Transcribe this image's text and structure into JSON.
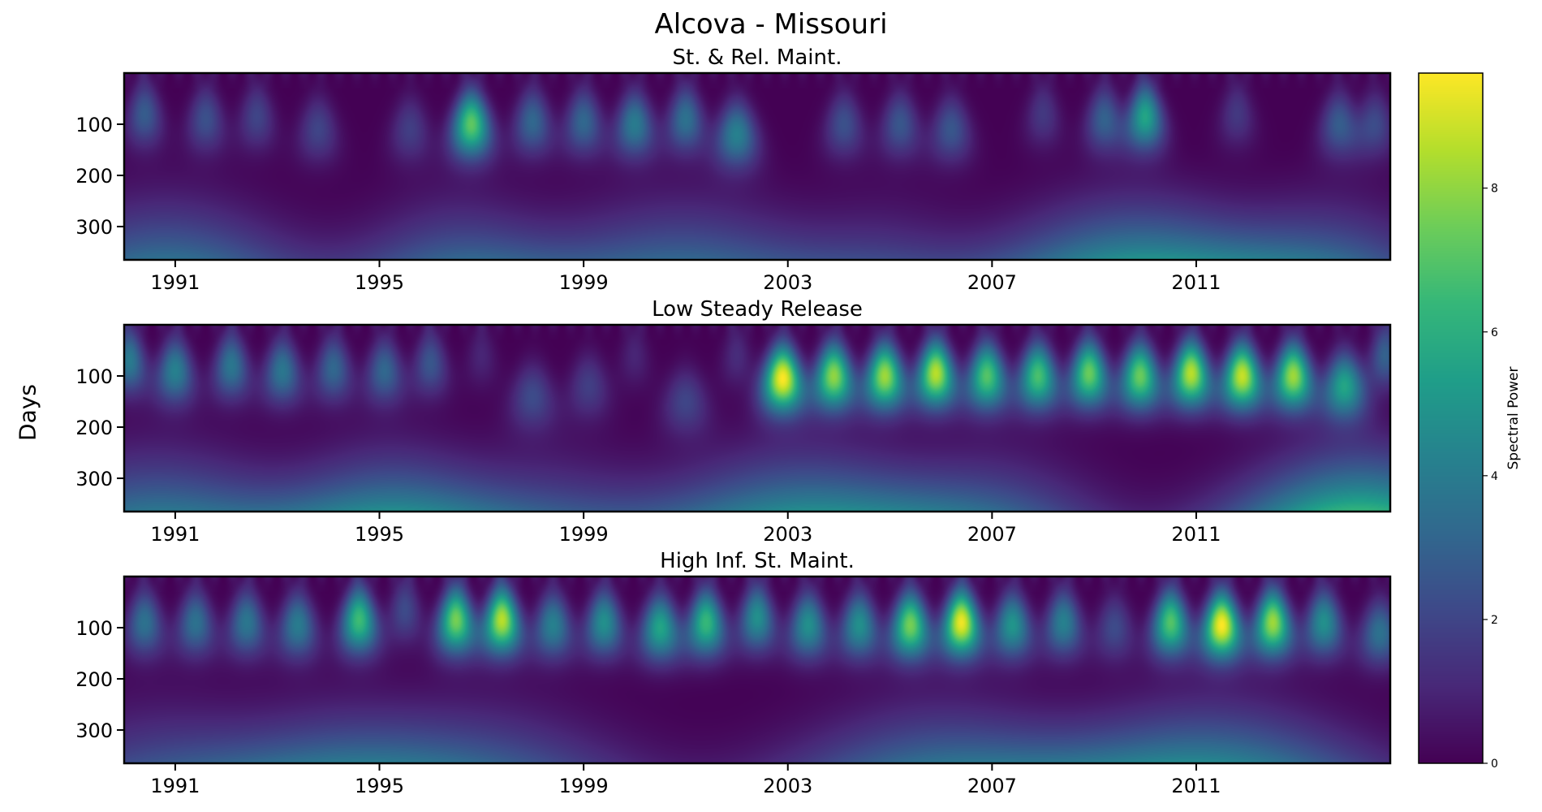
{
  "chart_data": {
    "type": "heatmap",
    "title": "Alcova - Missouri",
    "ylabel": "Days",
    "colorbar": {
      "label": "Spectral Power",
      "range": [
        0,
        9.6
      ],
      "ticks": [
        0,
        2,
        4,
        6,
        8
      ],
      "colormap": "viridis"
    },
    "x_ticks": [
      "1991",
      "1995",
      "1999",
      "2003",
      "2007",
      "2011"
    ],
    "x_range": [
      1990,
      2014.8
    ],
    "y_ticks": [
      100,
      200,
      300
    ],
    "y_range": [
      0,
      365
    ],
    "panels": [
      {
        "title": "St. & Rel. Maint.",
        "blobs": [
          {
            "t": 1990.4,
            "p": 80,
            "a": 2.8
          },
          {
            "t": 1991.6,
            "p": 90,
            "a": 2.4
          },
          {
            "t": 1992.6,
            "p": 85,
            "a": 2.0
          },
          {
            "t": 1993.8,
            "p": 110,
            "a": 2.0
          },
          {
            "t": 1995.6,
            "p": 110,
            "a": 1.8
          },
          {
            "t": 1996.8,
            "p": 100,
            "a": 7.2
          },
          {
            "t": 1998.0,
            "p": 95,
            "a": 3.2
          },
          {
            "t": 1999.0,
            "p": 95,
            "a": 3.2
          },
          {
            "t": 2000.0,
            "p": 100,
            "a": 4.0
          },
          {
            "t": 2001.0,
            "p": 90,
            "a": 3.6
          },
          {
            "t": 2002.0,
            "p": 120,
            "a": 4.2
          },
          {
            "t": 2004.1,
            "p": 100,
            "a": 2.4
          },
          {
            "t": 2005.2,
            "p": 100,
            "a": 2.6
          },
          {
            "t": 2006.2,
            "p": 110,
            "a": 2.6
          },
          {
            "t": 2008.0,
            "p": 80,
            "a": 1.6
          },
          {
            "t": 2009.2,
            "p": 90,
            "a": 3.0
          },
          {
            "t": 2010.0,
            "p": 85,
            "a": 5.6
          },
          {
            "t": 2011.8,
            "p": 80,
            "a": 1.6
          },
          {
            "t": 2013.8,
            "p": 100,
            "a": 2.8
          },
          {
            "t": 2014.5,
            "p": 100,
            "a": 2.2
          }
        ],
        "bands": [
          {
            "t": 1990.8,
            "w": 1.4,
            "a": 3.6
          },
          {
            "t": 1996.5,
            "w": 1.1,
            "a": 2.8
          },
          {
            "t": 2000.9,
            "w": 1.6,
            "a": 3.2
          },
          {
            "t": 2004.9,
            "w": 1.0,
            "a": 1.4
          },
          {
            "t": 2009.8,
            "w": 1.5,
            "a": 4.8
          },
          {
            "t": 2013.6,
            "w": 1.2,
            "a": 2.8
          }
        ]
      },
      {
        "title": "Low Steady Release",
        "blobs": [
          {
            "t": 1990.1,
            "p": 70,
            "a": 4.0
          },
          {
            "t": 1991.0,
            "p": 90,
            "a": 4.2
          },
          {
            "t": 1992.1,
            "p": 80,
            "a": 3.8
          },
          {
            "t": 1993.1,
            "p": 90,
            "a": 3.8
          },
          {
            "t": 1994.1,
            "p": 85,
            "a": 3.2
          },
          {
            "t": 1995.1,
            "p": 90,
            "a": 3.2
          },
          {
            "t": 1996.0,
            "p": 75,
            "a": 2.6
          },
          {
            "t": 1997.0,
            "p": 60,
            "a": 1.0
          },
          {
            "t": 1998.0,
            "p": 140,
            "a": 2.2
          },
          {
            "t": 1999.1,
            "p": 120,
            "a": 1.8
          },
          {
            "t": 2000.0,
            "p": 60,
            "a": 1.0
          },
          {
            "t": 2001.0,
            "p": 150,
            "a": 2.0
          },
          {
            "t": 2002.0,
            "p": 60,
            "a": 1.2
          },
          {
            "t": 2002.9,
            "p": 105,
            "a": 9.6
          },
          {
            "t": 2003.9,
            "p": 100,
            "a": 8.0
          },
          {
            "t": 2004.9,
            "p": 100,
            "a": 8.2
          },
          {
            "t": 2005.9,
            "p": 95,
            "a": 8.6
          },
          {
            "t": 2006.9,
            "p": 100,
            "a": 7.0
          },
          {
            "t": 2007.9,
            "p": 100,
            "a": 6.8
          },
          {
            "t": 2008.9,
            "p": 95,
            "a": 7.4
          },
          {
            "t": 2009.9,
            "p": 100,
            "a": 7.4
          },
          {
            "t": 2010.9,
            "p": 95,
            "a": 8.6
          },
          {
            "t": 2011.9,
            "p": 100,
            "a": 8.8
          },
          {
            "t": 2012.9,
            "p": 100,
            "a": 8.2
          },
          {
            "t": 2013.9,
            "p": 120,
            "a": 5.6
          },
          {
            "t": 2014.7,
            "p": 60,
            "a": 3.0
          }
        ],
        "bands": [
          {
            "t": 1990.6,
            "w": 1.5,
            "a": 3.8
          },
          {
            "t": 1995.2,
            "w": 1.2,
            "a": 4.2
          },
          {
            "t": 1998.3,
            "w": 1.2,
            "a": 2.0
          },
          {
            "t": 2003.3,
            "w": 1.6,
            "a": 4.6
          },
          {
            "t": 2007.0,
            "w": 1.2,
            "a": 2.4
          },
          {
            "t": 2014.2,
            "w": 1.3,
            "a": 6.4
          }
        ]
      },
      {
        "title": "High Inf. St. Maint.",
        "blobs": [
          {
            "t": 1990.4,
            "p": 90,
            "a": 3.6
          },
          {
            "t": 1991.4,
            "p": 90,
            "a": 3.6
          },
          {
            "t": 1992.4,
            "p": 90,
            "a": 3.8
          },
          {
            "t": 1993.4,
            "p": 95,
            "a": 4.0
          },
          {
            "t": 1994.6,
            "p": 85,
            "a": 6.6
          },
          {
            "t": 1995.5,
            "p": 65,
            "a": 2.2
          },
          {
            "t": 1996.5,
            "p": 85,
            "a": 7.6
          },
          {
            "t": 1997.4,
            "p": 85,
            "a": 8.6
          },
          {
            "t": 1998.4,
            "p": 95,
            "a": 4.2
          },
          {
            "t": 1999.4,
            "p": 90,
            "a": 4.8
          },
          {
            "t": 2000.5,
            "p": 100,
            "a": 5.6
          },
          {
            "t": 2001.4,
            "p": 90,
            "a": 6.4
          },
          {
            "t": 2002.4,
            "p": 80,
            "a": 4.8
          },
          {
            "t": 2003.4,
            "p": 95,
            "a": 4.8
          },
          {
            "t": 2004.4,
            "p": 95,
            "a": 4.8
          },
          {
            "t": 2005.4,
            "p": 95,
            "a": 7.6
          },
          {
            "t": 2006.4,
            "p": 90,
            "a": 9.4
          },
          {
            "t": 2007.4,
            "p": 95,
            "a": 5.0
          },
          {
            "t": 2008.4,
            "p": 90,
            "a": 4.2
          },
          {
            "t": 2009.4,
            "p": 100,
            "a": 2.2
          },
          {
            "t": 2010.5,
            "p": 90,
            "a": 7.0
          },
          {
            "t": 2011.5,
            "p": 95,
            "a": 9.6
          },
          {
            "t": 2012.5,
            "p": 90,
            "a": 8.2
          },
          {
            "t": 2013.5,
            "p": 90,
            "a": 4.8
          },
          {
            "t": 2014.6,
            "p": 110,
            "a": 3.6
          }
        ],
        "bands": [
          {
            "t": 1990.7,
            "w": 1.4,
            "a": 2.2
          },
          {
            "t": 1994.1,
            "w": 1.3,
            "a": 2.4
          },
          {
            "t": 1996.9,
            "w": 1.6,
            "a": 2.6
          },
          {
            "t": 2006.0,
            "w": 1.6,
            "a": 3.4
          },
          {
            "t": 2011.2,
            "w": 1.7,
            "a": 4.4
          }
        ]
      }
    ]
  }
}
